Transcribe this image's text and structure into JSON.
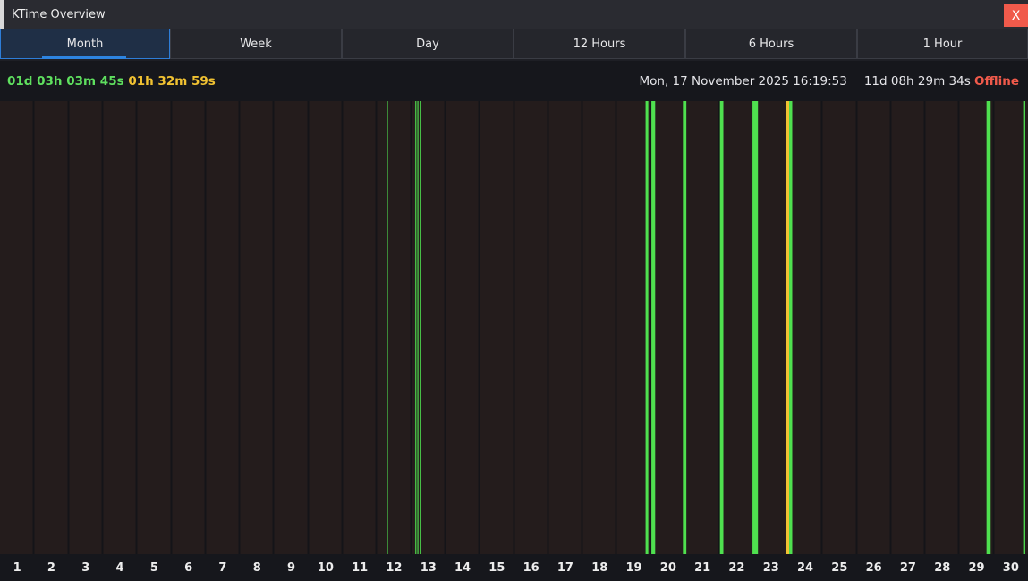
{
  "window": {
    "title": "KTime Overview",
    "close_label": "X"
  },
  "tabs": [
    {
      "label": "Month",
      "active": true
    },
    {
      "label": "Week"
    },
    {
      "label": "Day"
    },
    {
      "label": "12 Hours"
    },
    {
      "label": "6 Hours"
    },
    {
      "label": "1 Hour"
    }
  ],
  "status": {
    "active_time": "01d 03h 03m 45s",
    "idle_time": "01h 32m 59s",
    "datetime": "Mon, 17 November 2025 16:19:53",
    "uptime": "11d 08h 29m 34s",
    "state": "Offline"
  },
  "colors": {
    "active": "#4fe04f",
    "idle": "#f1c232",
    "background": "#241c1c",
    "offline": "#f05a4b"
  },
  "chart_data": {
    "type": "bar",
    "x_domain_days": [
      1,
      31
    ],
    "tick_labels": [
      "1",
      "2",
      "3",
      "4",
      "5",
      "6",
      "7",
      "8",
      "9",
      "10",
      "11",
      "12",
      "13",
      "14",
      "15",
      "16",
      "17",
      "18",
      "19",
      "20",
      "21",
      "22",
      "23",
      "24",
      "25",
      "26",
      "27",
      "28",
      "29",
      "30"
    ],
    "segments": [
      {
        "start": 12.29,
        "end": 12.32,
        "kind": "active"
      },
      {
        "start": 13.12,
        "end": 13.15,
        "kind": "active"
      },
      {
        "start": 13.18,
        "end": 13.21,
        "kind": "active"
      },
      {
        "start": 13.25,
        "end": 13.28,
        "kind": "active"
      },
      {
        "start": 19.84,
        "end": 19.92,
        "kind": "active"
      },
      {
        "start": 20.01,
        "end": 20.12,
        "kind": "active"
      },
      {
        "start": 20.93,
        "end": 21.03,
        "kind": "active"
      },
      {
        "start": 22.01,
        "end": 22.11,
        "kind": "active"
      },
      {
        "start": 22.96,
        "end": 23.12,
        "kind": "active"
      },
      {
        "start": 23.93,
        "end": 24.03,
        "kind": "idle"
      },
      {
        "start": 24.03,
        "end": 24.12,
        "kind": "active"
      },
      {
        "start": 29.79,
        "end": 29.91,
        "kind": "active"
      },
      {
        "start": 30.86,
        "end": 30.92,
        "kind": "active"
      }
    ]
  }
}
